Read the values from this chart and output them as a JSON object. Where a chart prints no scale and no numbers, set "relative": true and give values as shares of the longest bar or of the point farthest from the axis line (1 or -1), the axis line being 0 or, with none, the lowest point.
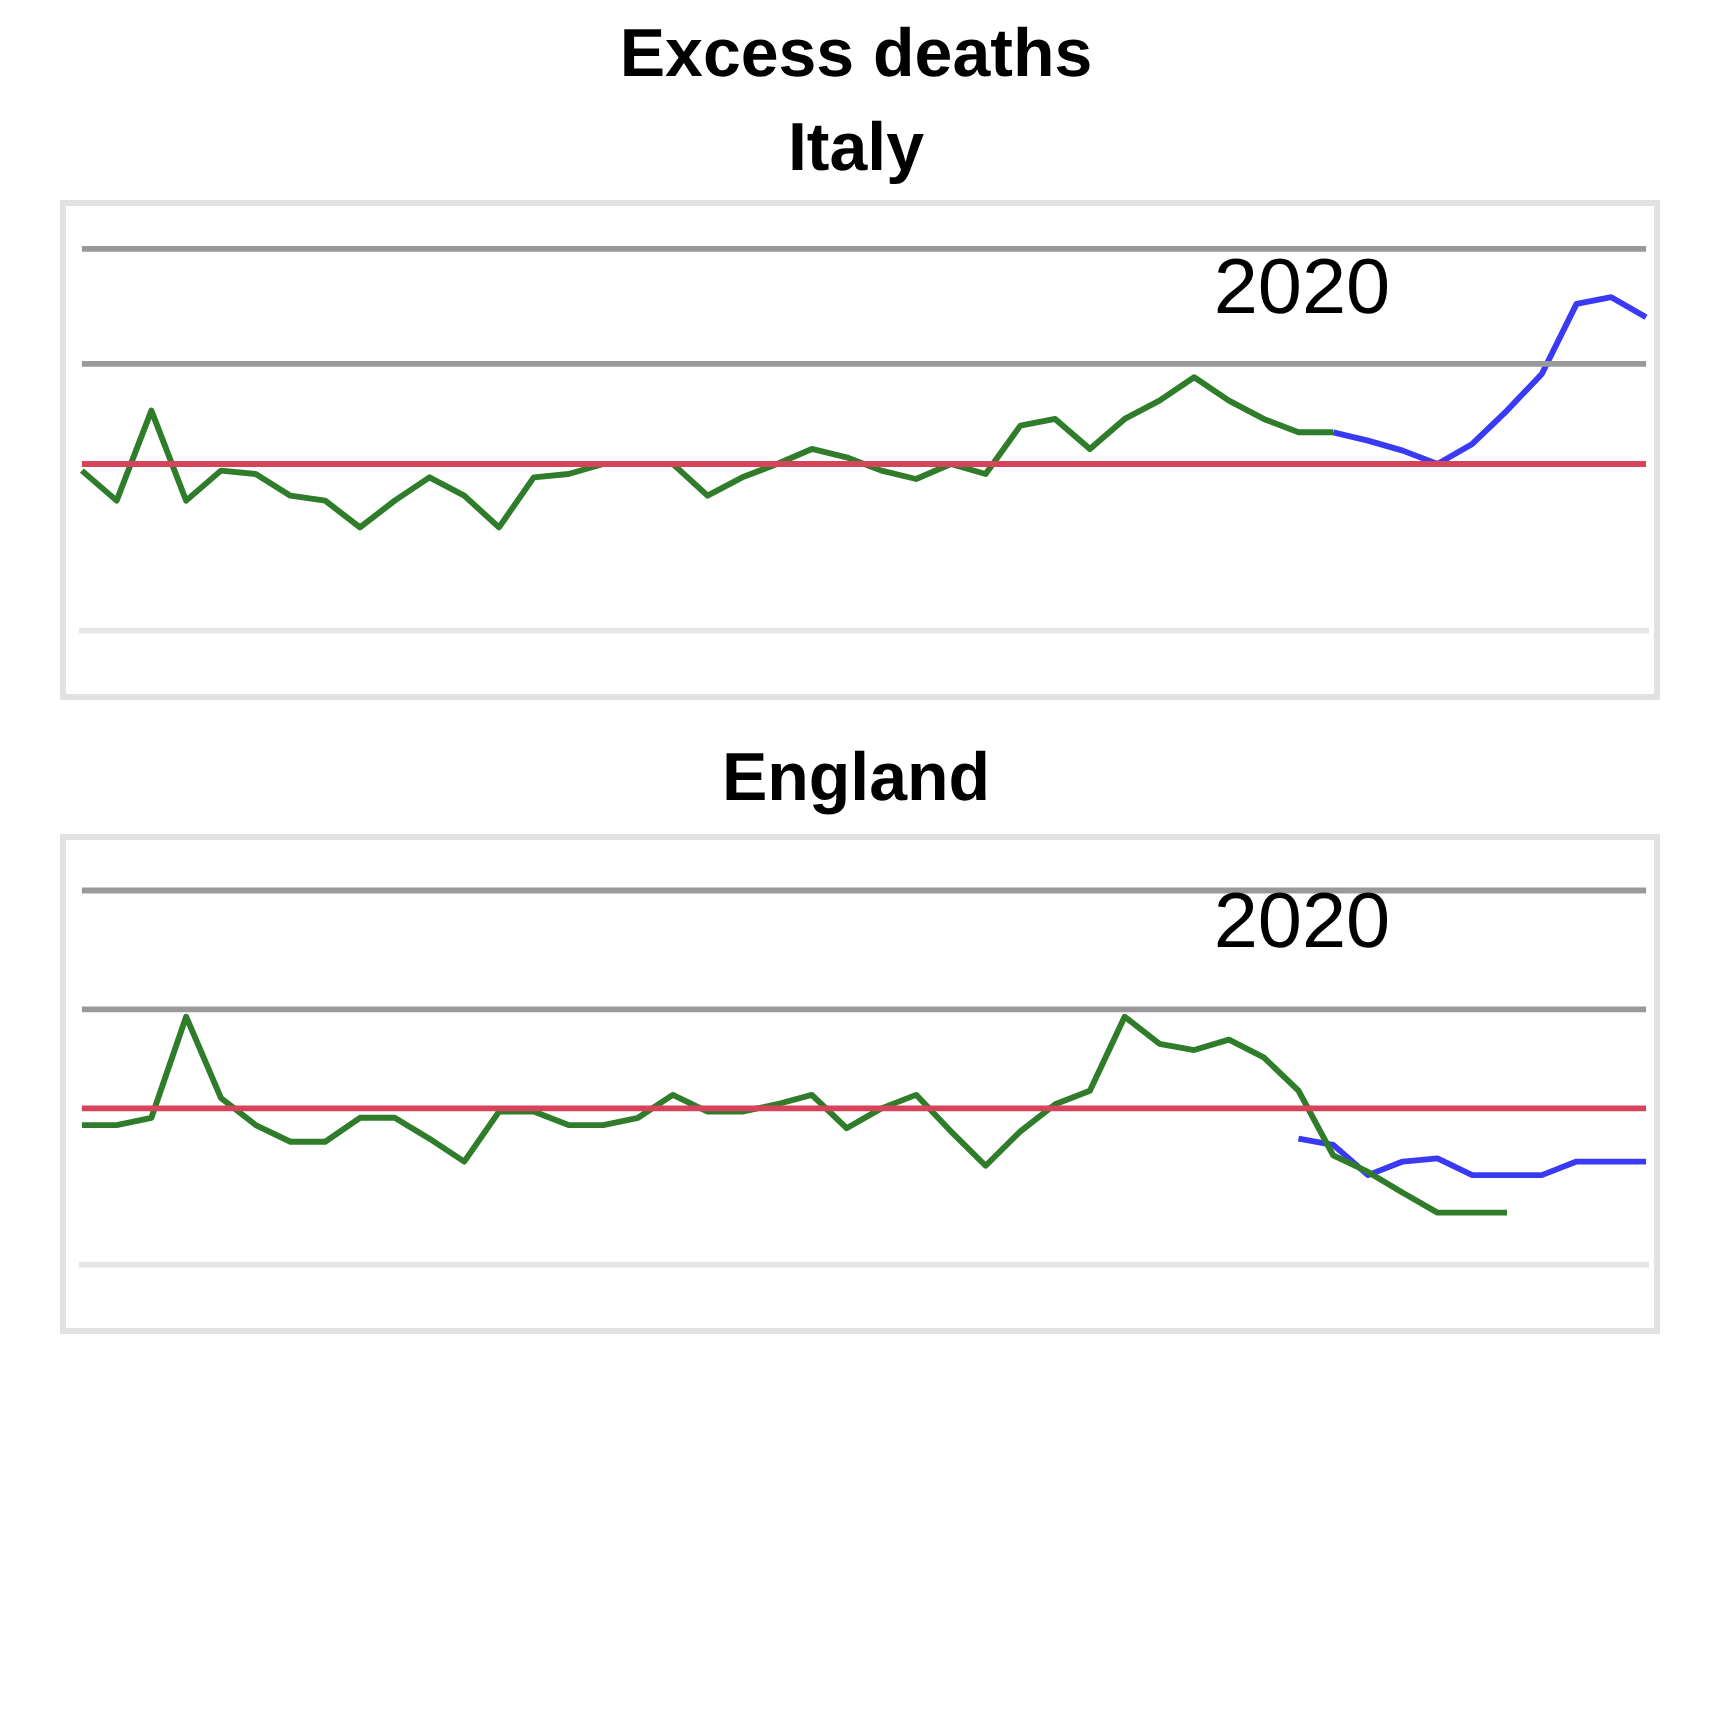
{
  "chart_data": [
    {
      "type": "line",
      "title": "Excess deaths",
      "subtitle": "Italy",
      "relative": true,
      "legend": false,
      "marker": "none",
      "annotations": [
        "2020"
      ],
      "categories": [
        null,
        null,
        null,
        null,
        null,
        null,
        null,
        null,
        null,
        null,
        null,
        null,
        null,
        null,
        null,
        null,
        null,
        null,
        null,
        null,
        null,
        null,
        null,
        null,
        null,
        null,
        null,
        null,
        null,
        null,
        null,
        null,
        null,
        null,
        null,
        null,
        null,
        null,
        null,
        null,
        null,
        null,
        null,
        null,
        null,
        null
      ],
      "ref_lines": [
        {
          "axis": "y",
          "value": 0,
          "color": "#d6435a"
        },
        {
          "axis": "y",
          "value": 1.29,
          "color": "#999999"
        },
        {
          "axis": "y",
          "value": 0.6,
          "color": "#999999"
        }
      ],
      "series": [
        {
          "color": "#2f7d2a",
          "values": [
            -0.04,
            -0.22,
            0.32,
            -0.22,
            -0.04,
            -0.06,
            -0.19,
            -0.22,
            -0.38,
            -0.22,
            -0.08,
            -0.19,
            -0.38,
            -0.08,
            -0.06,
            0,
            0,
            0,
            -0.19,
            -0.08,
            0,
            0.09,
            0.04,
            -0.04,
            -0.09,
            0,
            -0.06,
            0.23,
            0.27,
            0.09,
            0.27,
            0.38,
            0.52,
            0.38,
            0.27,
            0.19,
            0.19,
            null,
            null,
            null,
            null,
            null,
            null,
            null,
            null,
            null
          ]
        },
        {
          "color": "#3a3af5",
          "values": [
            null,
            null,
            null,
            null,
            null,
            null,
            null,
            null,
            null,
            null,
            null,
            null,
            null,
            null,
            null,
            null,
            null,
            null,
            null,
            null,
            null,
            null,
            null,
            null,
            null,
            null,
            null,
            null,
            null,
            null,
            null,
            null,
            null,
            null,
            null,
            null,
            0.19,
            0.14,
            0.08,
            0,
            0.12,
            0.32,
            0.54,
            0.96,
            1,
            0.88
          ]
        }
      ]
    },
    {
      "type": "line",
      "title": "England",
      "relative": true,
      "legend": false,
      "marker": "none",
      "annotations": [
        "2020"
      ],
      "categories": [
        null,
        null,
        null,
        null,
        null,
        null,
        null,
        null,
        null,
        null,
        null,
        null,
        null,
        null,
        null,
        null,
        null,
        null,
        null,
        null,
        null,
        null,
        null,
        null,
        null,
        null,
        null,
        null,
        null,
        null,
        null,
        null,
        null,
        null,
        null,
        null,
        null,
        null,
        null,
        null,
        null,
        null,
        null,
        null,
        null,
        null
      ],
      "ref_lines": [
        {
          "axis": "y",
          "value": 0,
          "color": "#d6435a"
        },
        {
          "axis": "y",
          "value": 2.09,
          "color": "#999999"
        },
        {
          "axis": "y",
          "value": 0.95,
          "color": "#999999"
        }
      ],
      "series": [
        {
          "color": "#2f7d2a",
          "values": [
            -0.16,
            -0.16,
            -0.09,
            0.88,
            0.1,
            -0.16,
            -0.32,
            -0.32,
            -0.09,
            -0.09,
            -0.29,
            -0.51,
            -0.03,
            -0.03,
            -0.16,
            -0.16,
            -0.09,
            0.13,
            -0.03,
            -0.03,
            0.04,
            0.13,
            -0.19,
            0,
            0.13,
            -0.22,
            -0.55,
            -0.22,
            0.04,
            0.17,
            0.88,
            0.62,
            0.56,
            0.66,
            0.49,
            0.17,
            -0.45,
            -0.61,
            -0.81,
            -1,
            -1,
            -1,
            null,
            null,
            null,
            null
          ]
        },
        {
          "color": "#3a3af5",
          "values": [
            null,
            null,
            null,
            null,
            null,
            null,
            null,
            null,
            null,
            null,
            null,
            null,
            null,
            null,
            null,
            null,
            null,
            null,
            null,
            null,
            null,
            null,
            null,
            null,
            null,
            null,
            null,
            null,
            null,
            null,
            null,
            null,
            null,
            null,
            null,
            -0.29,
            -0.35,
            -0.64,
            -0.51,
            -0.48,
            -0.64,
            -0.64,
            -0.64,
            -0.51,
            -0.51,
            -0.51
          ]
        }
      ]
    }
  ]
}
